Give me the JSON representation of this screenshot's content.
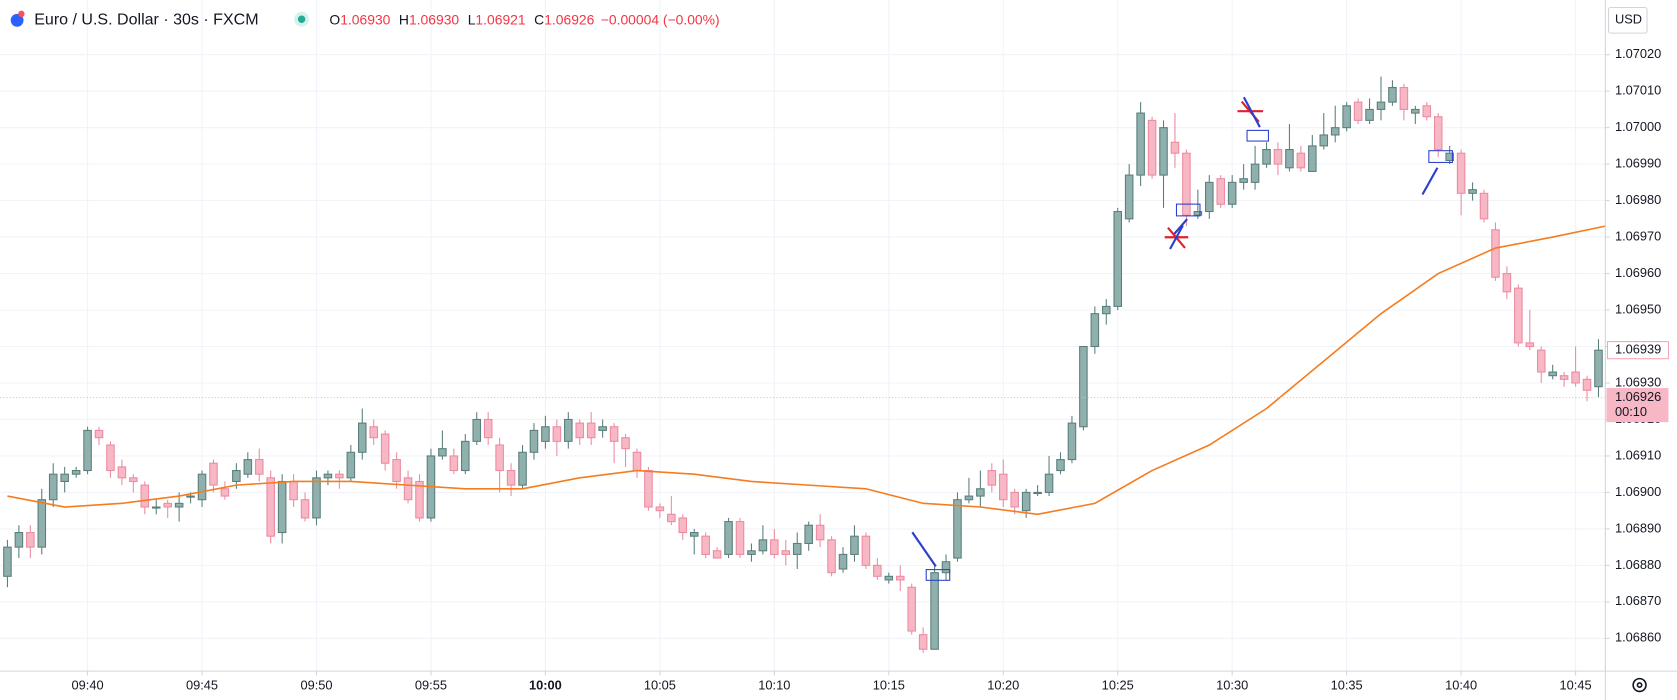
{
  "chart_data": {
    "type": "candlestick",
    "symbol": "Euro / U.S. Dollar · 30s · FXCM",
    "ohlc_header": [
      {
        "key": "O",
        "value": "1.06930"
      },
      {
        "key": "H",
        "value": "1.06930"
      },
      {
        "key": "L",
        "value": "1.06921"
      },
      {
        "key": "C",
        "value": "1.06926"
      }
    ],
    "change": "−0.00004 (−0.00%)",
    "currency": "USD",
    "up_color": "#8fb0ac",
    "up_border": "#5a7f7b",
    "down_color": "#f7b7c5",
    "down_border": "#ec8ba1",
    "grid": true,
    "xlim": [
      -0.65,
      139.6
    ],
    "ylim": [
      1.06851,
      1.07035
    ],
    "yticks": [
      {
        "value": 1.0686,
        "label": "1.06860"
      },
      {
        "value": 1.0687,
        "label": "1.06870"
      },
      {
        "value": 1.0688,
        "label": "1.06880"
      },
      {
        "value": 1.0689,
        "label": "1.06890"
      },
      {
        "value": 1.069,
        "label": "1.06900"
      },
      {
        "value": 1.0691,
        "label": "1.06910"
      },
      {
        "value": 1.0692,
        "label": "1.06920"
      },
      {
        "value": 1.0693,
        "label": "1.06930"
      },
      {
        "value": 1.0694,
        "label": "1.06940"
      },
      {
        "value": 1.0695,
        "label": "1.06950"
      },
      {
        "value": 1.0696,
        "label": "1.06960"
      },
      {
        "value": 1.0697,
        "label": "1.06970"
      },
      {
        "value": 1.0698,
        "label": "1.06980"
      },
      {
        "value": 1.0699,
        "label": "1.06990"
      },
      {
        "value": 1.07,
        "label": "1.07000"
      },
      {
        "value": 1.0701,
        "label": "1.07010"
      },
      {
        "value": 1.0702,
        "label": "1.07020"
      }
    ],
    "xticks": [
      {
        "value": 7,
        "label": "09:40"
      },
      {
        "value": 17,
        "label": "09:45"
      },
      {
        "value": 27,
        "label": "09:50"
      },
      {
        "value": 37,
        "label": "09:55"
      },
      {
        "value": 47,
        "label": "10:00",
        "bold": true
      },
      {
        "value": 57,
        "label": "10:05"
      },
      {
        "value": 67,
        "label": "10:10"
      },
      {
        "value": 77,
        "label": "10:15"
      },
      {
        "value": 87,
        "label": "10:20"
      },
      {
        "value": 97,
        "label": "10:25"
      },
      {
        "value": 107,
        "label": "10:30"
      },
      {
        "value": 117,
        "label": "10:35"
      },
      {
        "value": 127,
        "label": "10:40"
      },
      {
        "value": 137,
        "label": "10:45"
      }
    ],
    "ohlc": [
      [
        1.06877,
        1.06887,
        1.06874,
        1.06885
      ],
      [
        1.06885,
        1.06891,
        1.06882,
        1.06889
      ],
      [
        1.06889,
        1.06891,
        1.06882,
        1.06885
      ],
      [
        1.06885,
        1.06901,
        1.06883,
        1.06898
      ],
      [
        1.06898,
        1.06908,
        1.06896,
        1.06905
      ],
      [
        1.06903,
        1.06907,
        1.069,
        1.06905
      ],
      [
        1.06905,
        1.06907,
        1.06904,
        1.06906
      ],
      [
        1.06906,
        1.06918,
        1.06905,
        1.06917
      ],
      [
        1.06917,
        1.06918,
        1.06913,
        1.06915
      ],
      [
        1.06913,
        1.06914,
        1.06904,
        1.06906
      ],
      [
        1.06907,
        1.06909,
        1.06902,
        1.06904
      ],
      [
        1.06904,
        1.06905,
        1.069,
        1.06903
      ],
      [
        1.06902,
        1.06903,
        1.06894,
        1.06896
      ],
      [
        1.06896,
        1.06898,
        1.06894,
        1.06896
      ],
      [
        1.06897,
        1.06898,
        1.06893,
        1.06896
      ],
      [
        1.06896,
        1.069,
        1.06892,
        1.06897
      ],
      [
        1.06899,
        1.069,
        1.06897,
        1.06899
      ],
      [
        1.06898,
        1.06906,
        1.06896,
        1.06905
      ],
      [
        1.06908,
        1.06909,
        1.069,
        1.06902
      ],
      [
        1.06901,
        1.06903,
        1.06898,
        1.06899
      ],
      [
        1.06903,
        1.06908,
        1.06901,
        1.06906
      ],
      [
        1.06905,
        1.06911,
        1.06904,
        1.06909
      ],
      [
        1.06909,
        1.06912,
        1.06903,
        1.06905
      ],
      [
        1.06904,
        1.06906,
        1.06886,
        1.06888
      ],
      [
        1.06889,
        1.06905,
        1.06886,
        1.06903
      ],
      [
        1.06903,
        1.06905,
        1.06896,
        1.06898
      ],
      [
        1.06898,
        1.069,
        1.06892,
        1.06893
      ],
      [
        1.06893,
        1.06906,
        1.06891,
        1.06904
      ],
      [
        1.06904,
        1.06906,
        1.06902,
        1.06905
      ],
      [
        1.06905,
        1.06906,
        1.06901,
        1.06904
      ],
      [
        1.06904,
        1.06913,
        1.06903,
        1.06911
      ],
      [
        1.06911,
        1.06923,
        1.06909,
        1.06919
      ],
      [
        1.06918,
        1.0692,
        1.06913,
        1.06915
      ],
      [
        1.06916,
        1.06917,
        1.06906,
        1.06908
      ],
      [
        1.06909,
        1.06911,
        1.06901,
        1.06903
      ],
      [
        1.06904,
        1.06906,
        1.06897,
        1.06898
      ],
      [
        1.06903,
        1.06905,
        1.06892,
        1.06893
      ],
      [
        1.06893,
        1.06912,
        1.06892,
        1.0691
      ],
      [
        1.0691,
        1.06917,
        1.06909,
        1.06912
      ],
      [
        1.0691,
        1.06912,
        1.06905,
        1.06906
      ],
      [
        1.06906,
        1.06916,
        1.06905,
        1.06914
      ],
      [
        1.06914,
        1.06922,
        1.06913,
        1.0692
      ],
      [
        1.0692,
        1.06922,
        1.06913,
        1.06915
      ],
      [
        1.06913,
        1.06915,
        1.069,
        1.06906
      ],
      [
        1.06906,
        1.06908,
        1.06899,
        1.06902
      ],
      [
        1.06902,
        1.06913,
        1.06901,
        1.06911
      ],
      [
        1.06911,
        1.06919,
        1.06909,
        1.06917
      ],
      [
        1.06914,
        1.06921,
        1.06912,
        1.06918
      ],
      [
        1.06918,
        1.0692,
        1.0691,
        1.06914
      ],
      [
        1.06914,
        1.06922,
        1.06912,
        1.0692
      ],
      [
        1.06919,
        1.0692,
        1.06913,
        1.06915
      ],
      [
        1.06919,
        1.06922,
        1.06913,
        1.06915
      ],
      [
        1.06917,
        1.0692,
        1.06915,
        1.06918
      ],
      [
        1.06918,
        1.06919,
        1.06908,
        1.06914
      ],
      [
        1.06915,
        1.06916,
        1.06907,
        1.06912
      ],
      [
        1.06911,
        1.06912,
        1.06904,
        1.06906
      ],
      [
        1.06906,
        1.06907,
        1.06895,
        1.06896
      ],
      [
        1.06896,
        1.06897,
        1.06893,
        1.06895
      ],
      [
        1.06894,
        1.06899,
        1.06891,
        1.06892
      ],
      [
        1.06893,
        1.06894,
        1.06887,
        1.06889
      ],
      [
        1.06888,
        1.0689,
        1.06883,
        1.06889
      ],
      [
        1.06888,
        1.06889,
        1.06882,
        1.06883
      ],
      [
        1.06884,
        1.06885,
        1.06882,
        1.06882
      ],
      [
        1.06883,
        1.06893,
        1.06882,
        1.06892
      ],
      [
        1.06892,
        1.06893,
        1.06882,
        1.06883
      ],
      [
        1.06883,
        1.06886,
        1.06881,
        1.06884
      ],
      [
        1.06884,
        1.06891,
        1.06883,
        1.06887
      ],
      [
        1.06887,
        1.0689,
        1.06882,
        1.06883
      ],
      [
        1.06884,
        1.06887,
        1.0688,
        1.06883
      ],
      [
        1.06883,
        1.06889,
        1.06879,
        1.06886
      ],
      [
        1.06886,
        1.06892,
        1.06884,
        1.06891
      ],
      [
        1.06891,
        1.06894,
        1.06885,
        1.06887
      ],
      [
        1.06887,
        1.06888,
        1.06877,
        1.06878
      ],
      [
        1.06879,
        1.06885,
        1.06878,
        1.06883
      ],
      [
        1.06883,
        1.06891,
        1.06881,
        1.06888
      ],
      [
        1.06888,
        1.06889,
        1.06879,
        1.0688
      ],
      [
        1.0688,
        1.06882,
        1.06876,
        1.06877
      ],
      [
        1.06876,
        1.06878,
        1.06875,
        1.06877
      ],
      [
        1.06877,
        1.0688,
        1.06873,
        1.06876
      ],
      [
        1.06874,
        1.06875,
        1.06861,
        1.06862
      ],
      [
        1.06861,
        1.06863,
        1.06856,
        1.06857
      ],
      [
        1.06857,
        1.0688,
        1.06857,
        1.06878
      ],
      [
        1.06878,
        1.06883,
        1.06876,
        1.06881
      ],
      [
        1.06882,
        1.069,
        1.06881,
        1.06898
      ],
      [
        1.06898,
        1.06904,
        1.06897,
        1.06899
      ],
      [
        1.06899,
        1.06906,
        1.06896,
        1.06901
      ],
      [
        1.06906,
        1.06908,
        1.069,
        1.06902
      ],
      [
        1.06905,
        1.06909,
        1.06896,
        1.06898
      ],
      [
        1.069,
        1.06901,
        1.06894,
        1.06896
      ],
      [
        1.06895,
        1.06901,
        1.06893,
        1.069
      ],
      [
        1.069,
        1.06902,
        1.06899,
        1.069
      ],
      [
        1.069,
        1.0691,
        1.06899,
        1.06905
      ],
      [
        1.06906,
        1.06911,
        1.06905,
        1.06909
      ],
      [
        1.06909,
        1.06921,
        1.06908,
        1.06919
      ],
      [
        1.06918,
        1.0694,
        1.06917,
        1.0694
      ],
      [
        1.0694,
        1.06951,
        1.06938,
        1.06949
      ],
      [
        1.06949,
        1.06953,
        1.06946,
        1.06951
      ],
      [
        1.06951,
        1.06978,
        1.0695,
        1.06977
      ],
      [
        1.06975,
        1.0699,
        1.06974,
        1.06987
      ],
      [
        1.06987,
        1.07007,
        1.06984,
        1.07004
      ],
      [
        1.07002,
        1.07003,
        1.06986,
        1.06987
      ],
      [
        1.06987,
        1.07002,
        1.06978,
        1.07
      ],
      [
        1.06996,
        1.07004,
        1.06989,
        1.06993
      ],
      [
        1.06993,
        1.06994,
        1.06973,
        1.06976
      ],
      [
        1.06976,
        1.06983,
        1.06975,
        1.06977
      ],
      [
        1.06977,
        1.06987,
        1.06975,
        1.06985
      ],
      [
        1.06986,
        1.06987,
        1.06978,
        1.06979
      ],
      [
        1.06979,
        1.06987,
        1.06978,
        1.06985
      ],
      [
        1.06985,
        1.0699,
        1.06983,
        1.06986
      ],
      [
        1.06985,
        1.06995,
        1.06983,
        1.0699
      ],
      [
        1.0699,
        1.06996,
        1.06989,
        1.06994
      ],
      [
        1.06994,
        1.06996,
        1.06987,
        1.0699
      ],
      [
        1.06989,
        1.07001,
        1.06988,
        1.06994
      ],
      [
        1.06993,
        1.06995,
        1.06988,
        1.06989
      ],
      [
        1.06988,
        1.06998,
        1.06988,
        1.06995
      ],
      [
        1.06995,
        1.07004,
        1.06994,
        1.06998
      ],
      [
        1.06998,
        1.07006,
        1.06996,
        1.07
      ],
      [
        1.07,
        1.07007,
        1.06999,
        1.07006
      ],
      [
        1.07007,
        1.07008,
        1.07001,
        1.07002
      ],
      [
        1.07002,
        1.07008,
        1.07001,
        1.07005
      ],
      [
        1.07005,
        1.07014,
        1.07002,
        1.07007
      ],
      [
        1.07007,
        1.07013,
        1.07006,
        1.07011
      ],
      [
        1.07011,
        1.07012,
        1.07002,
        1.07005
      ],
      [
        1.07004,
        1.07006,
        1.07001,
        1.07005
      ],
      [
        1.07006,
        1.07007,
        1.07002,
        1.07003
      ],
      [
        1.07003,
        1.07004,
        1.06992,
        1.06994
      ],
      [
        1.06991,
        1.06995,
        1.0699,
        1.06993
      ],
      [
        1.06993,
        1.06994,
        1.06976,
        1.06982
      ],
      [
        1.06982,
        1.06985,
        1.0698,
        1.06983
      ],
      [
        1.06982,
        1.06983,
        1.06974,
        1.06975
      ],
      [
        1.06972,
        1.06974,
        1.06958,
        1.06959
      ],
      [
        1.0696,
        1.06962,
        1.06953,
        1.06955
      ],
      [
        1.06956,
        1.06957,
        1.0694,
        1.06941
      ],
      [
        1.06941,
        1.0695,
        1.06939,
        1.0694
      ],
      [
        1.06939,
        1.0694,
        1.0693,
        1.06933
      ],
      [
        1.06932,
        1.06935,
        1.06931,
        1.06933
      ],
      [
        1.06932,
        1.06933,
        1.06929,
        1.06931
      ],
      [
        1.06933,
        1.0694,
        1.06929,
        1.0693
      ],
      [
        1.06931,
        1.06932,
        1.06925,
        1.06928
      ],
      [
        1.06929,
        1.06942,
        1.06926,
        1.06939
      ]
    ],
    "moving_average": {
      "color": "#f57c1f",
      "x": [
        0,
        5,
        10,
        15,
        20,
        25,
        30,
        35,
        40,
        45,
        50,
        55,
        60,
        65,
        70,
        75,
        80,
        85,
        90,
        95,
        100,
        105,
        110,
        115,
        120,
        125,
        130,
        135,
        139.6
      ],
      "values": [
        1.06899,
        1.06896,
        1.06897,
        1.06899,
        1.06902,
        1.06903,
        1.06903,
        1.06902,
        1.06901,
        1.06901,
        1.06904,
        1.06906,
        1.06905,
        1.06903,
        1.06902,
        1.06901,
        1.06897,
        1.06896,
        1.06894,
        1.06897,
        1.06906,
        1.06913,
        1.06923,
        1.06936,
        1.06949,
        1.0696,
        1.06967,
        1.0697,
        1.06973
      ]
    },
    "last_price": {
      "value": 1.06926,
      "label": "1.06926",
      "color": "#f7b7c5"
    },
    "countdown": "00:10",
    "ghost_price": {
      "value": 1.06939,
      "label": "1.06939",
      "color": "#f4a6b8"
    }
  }
}
